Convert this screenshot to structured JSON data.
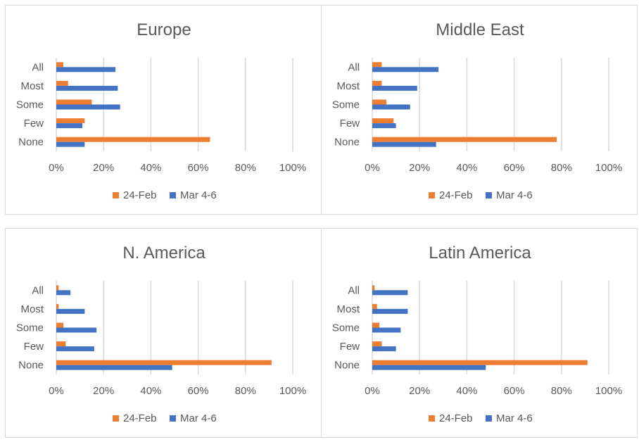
{
  "legend": {
    "series1": "24-Feb",
    "series2": "Mar 4-6"
  },
  "colors": {
    "series1": "#ED7D31",
    "series2": "#4472C4",
    "grid": "#D9D9D9"
  },
  "chart_data": [
    {
      "type": "bar",
      "title": "Europe",
      "categories": [
        "All",
        "Most",
        "Some",
        "Few",
        "None"
      ],
      "series": [
        {
          "name": "24-Feb",
          "values": [
            0.03,
            0.05,
            0.15,
            0.12,
            0.65
          ]
        },
        {
          "name": "Mar 4-6",
          "values": [
            0.25,
            0.26,
            0.27,
            0.11,
            0.12
          ]
        }
      ],
      "xlim": [
        0,
        1
      ],
      "xticks": [
        "0%",
        "20%",
        "40%",
        "60%",
        "80%",
        "100%"
      ],
      "grid": true,
      "legend_position": "bottom"
    },
    {
      "type": "bar",
      "title": "Middle East",
      "categories": [
        "All",
        "Most",
        "Some",
        "Few",
        "None"
      ],
      "series": [
        {
          "name": "24-Feb",
          "values": [
            0.04,
            0.04,
            0.06,
            0.09,
            0.78
          ]
        },
        {
          "name": "Mar 4-6",
          "values": [
            0.28,
            0.19,
            0.16,
            0.1,
            0.27
          ]
        }
      ],
      "xlim": [
        0,
        1
      ],
      "xticks": [
        "0%",
        "20%",
        "40%",
        "60%",
        "80%",
        "100%"
      ],
      "grid": true,
      "legend_position": "bottom"
    },
    {
      "type": "bar",
      "title": "N. America",
      "categories": [
        "All",
        "Most",
        "Some",
        "Few",
        "None"
      ],
      "series": [
        {
          "name": "24-Feb",
          "values": [
            0.01,
            0.01,
            0.03,
            0.04,
            0.91
          ]
        },
        {
          "name": "Mar 4-6",
          "values": [
            0.06,
            0.12,
            0.17,
            0.16,
            0.49
          ]
        }
      ],
      "xlim": [
        0,
        1
      ],
      "xticks": [
        "0%",
        "20%",
        "40%",
        "60%",
        "80%",
        "100%"
      ],
      "grid": true,
      "legend_position": "bottom"
    },
    {
      "type": "bar",
      "title": "Latin America",
      "categories": [
        "All",
        "Most",
        "Some",
        "Few",
        "None"
      ],
      "series": [
        {
          "name": "24-Feb",
          "values": [
            0.01,
            0.02,
            0.03,
            0.04,
            0.91
          ]
        },
        {
          "name": "Mar 4-6",
          "values": [
            0.15,
            0.15,
            0.12,
            0.1,
            0.48
          ]
        }
      ],
      "xlim": [
        0,
        1
      ],
      "xticks": [
        "0%",
        "20%",
        "40%",
        "60%",
        "80%",
        "100%"
      ],
      "grid": true,
      "legend_position": "bottom"
    }
  ]
}
